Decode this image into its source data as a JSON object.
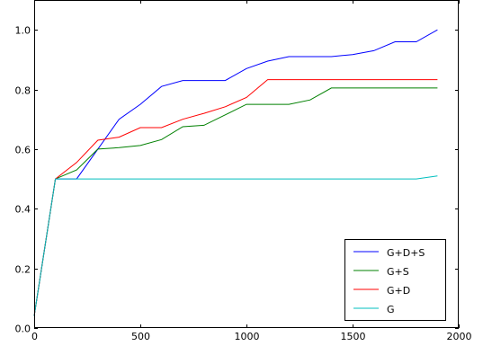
{
  "chart_data": {
    "type": "line",
    "title": "",
    "xlabel": "",
    "ylabel": "",
    "xlim": [
      0,
      2000
    ],
    "ylim": [
      0.0,
      1.1
    ],
    "x_ticks": [
      0,
      500,
      1000,
      1500,
      2000
    ],
    "x_tick_labels": [
      "0",
      "500",
      "1000",
      "1500",
      "2000"
    ],
    "y_ticks": [
      0.0,
      0.2,
      0.4,
      0.6,
      0.8,
      1.0
    ],
    "y_tick_labels": [
      "0.0",
      "0.2",
      "0.4",
      "0.6",
      "0.8",
      "1.0"
    ],
    "grid": false,
    "legend_position": "bottom-right",
    "series": [
      {
        "name": "G+D+S",
        "color": "#0000ff",
        "x": [
          0,
          100,
          200,
          300,
          400,
          500,
          600,
          700,
          800,
          900,
          1000,
          1100,
          1200,
          1300,
          1400,
          1500,
          1600,
          1700,
          1800,
          1900
        ],
        "y": [
          0.04,
          0.5,
          0.5,
          0.6,
          0.7,
          0.75,
          0.81,
          0.83,
          0.83,
          0.83,
          0.87,
          0.895,
          0.91,
          0.91,
          0.91,
          0.917,
          0.93,
          0.96,
          0.96,
          1.0
        ]
      },
      {
        "name": "G+S",
        "color": "#008000",
        "x": [
          0,
          100,
          200,
          300,
          400,
          500,
          600,
          700,
          800,
          900,
          1000,
          1100,
          1200,
          1300,
          1400,
          1500,
          1600,
          1700,
          1800,
          1900
        ],
        "y": [
          0.04,
          0.5,
          0.53,
          0.6,
          0.605,
          0.612,
          0.632,
          0.675,
          0.68,
          0.715,
          0.75,
          0.75,
          0.75,
          0.765,
          0.805,
          0.805,
          0.805,
          0.805,
          0.805,
          0.805
        ]
      },
      {
        "name": "G+D",
        "color": "#ff0000",
        "x": [
          0,
          100,
          200,
          300,
          400,
          500,
          600,
          700,
          800,
          900,
          1000,
          1100,
          1200,
          1300,
          1400,
          1500,
          1600,
          1700,
          1800,
          1900
        ],
        "y": [
          0.04,
          0.5,
          0.555,
          0.63,
          0.64,
          0.672,
          0.672,
          0.7,
          0.72,
          0.742,
          0.773,
          0.833,
          0.833,
          0.833,
          0.833,
          0.833,
          0.833,
          0.833,
          0.833,
          0.833
        ]
      },
      {
        "name": "G",
        "color": "#00bfbf",
        "x": [
          0,
          100,
          200,
          300,
          400,
          500,
          600,
          700,
          800,
          900,
          1000,
          1100,
          1200,
          1300,
          1400,
          1500,
          1600,
          1700,
          1800,
          1900
        ],
        "y": [
          0.04,
          0.5,
          0.5,
          0.5,
          0.5,
          0.5,
          0.5,
          0.5,
          0.5,
          0.5,
          0.5,
          0.5,
          0.5,
          0.5,
          0.5,
          0.5,
          0.5,
          0.5,
          0.5,
          0.51
        ]
      }
    ]
  }
}
